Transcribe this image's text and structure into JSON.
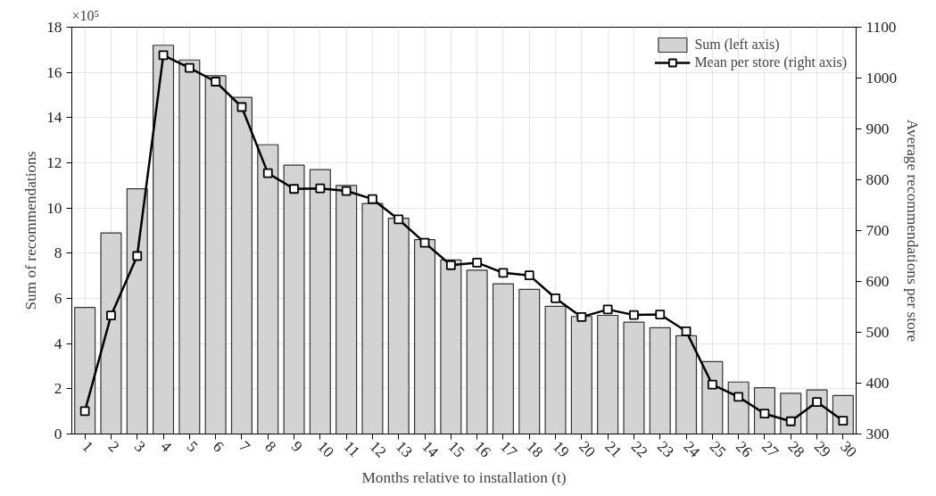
{
  "chart_data": {
    "type": "bar",
    "xlabel": "Months relative to installation (t)",
    "ylabel": "Sum of recommendations",
    "y2label": "Average recommendations per store",
    "x": [
      1,
      2,
      3,
      4,
      5,
      6,
      7,
      8,
      9,
      10,
      11,
      12,
      13,
      14,
      15,
      16,
      17,
      18,
      19,
      20,
      21,
      22,
      23,
      24,
      25,
      26,
      27,
      28,
      29,
      30
    ],
    "xlim": [
      0.5,
      30.5
    ],
    "xticks": [
      1,
      2,
      3,
      4,
      5,
      6,
      7,
      8,
      9,
      10,
      11,
      12,
      13,
      14,
      15,
      16,
      17,
      18,
      19,
      20,
      21,
      22,
      23,
      24,
      25,
      26,
      27,
      28,
      29,
      30
    ],
    "ylim": [
      0,
      18
    ],
    "yticks": [
      0,
      2,
      4,
      6,
      8,
      10,
      12,
      14,
      16,
      18
    ],
    "y2lim": [
      300,
      1100
    ],
    "y2ticks": [
      300,
      400,
      500,
      600,
      700,
      800,
      900,
      1000,
      1100
    ],
    "annotations": [
      "×10⁵"
    ],
    "series": [
      {
        "name": "Sum (left axis)",
        "color": "#d3d3d3",
        "values": [
          5.6,
          8.9,
          10.85,
          17.2,
          16.55,
          15.85,
          14.9,
          12.8,
          11.9,
          11.7,
          11.0,
          10.2,
          9.55,
          8.6,
          7.7,
          7.25,
          6.65,
          6.4,
          5.65,
          5.2,
          5.25,
          4.95,
          4.7,
          4.35,
          3.2,
          2.3,
          2.05,
          1.8,
          1.95,
          1.7
        ]
      },
      {
        "name": "Mean per store (right axis)",
        "type": "line",
        "axis": "y2",
        "color": "#000000",
        "marker": "square",
        "values": [
          345,
          533,
          650,
          1045,
          1020,
          993,
          943,
          813,
          782,
          783,
          778,
          762,
          722,
          676,
          632,
          637,
          617,
          612,
          567,
          530,
          545,
          534,
          535,
          502,
          397,
          373,
          340,
          325,
          363,
          326
        ]
      }
    ],
    "grid": true,
    "legend": "top right"
  }
}
